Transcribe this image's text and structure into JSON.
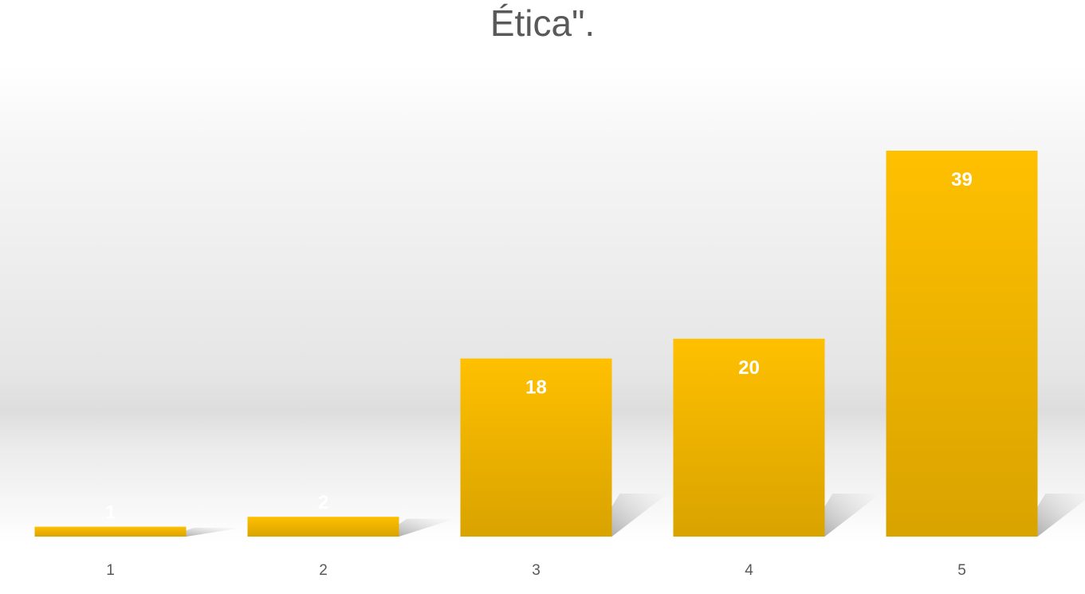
{
  "chart_data": {
    "type": "bar",
    "title": "Ética\".",
    "xlabel": "",
    "ylabel": "",
    "categories": [
      "1",
      "2",
      "3",
      "4",
      "5"
    ],
    "values": [
      1,
      2,
      18,
      20,
      39
    ],
    "data_labels": [
      "1",
      "2",
      "18",
      "20",
      "39"
    ],
    "ylim": [
      0,
      39
    ],
    "grid": false,
    "legend": "none",
    "bar_color": "#FFC000",
    "bar_color_dark": "#D9A300"
  }
}
